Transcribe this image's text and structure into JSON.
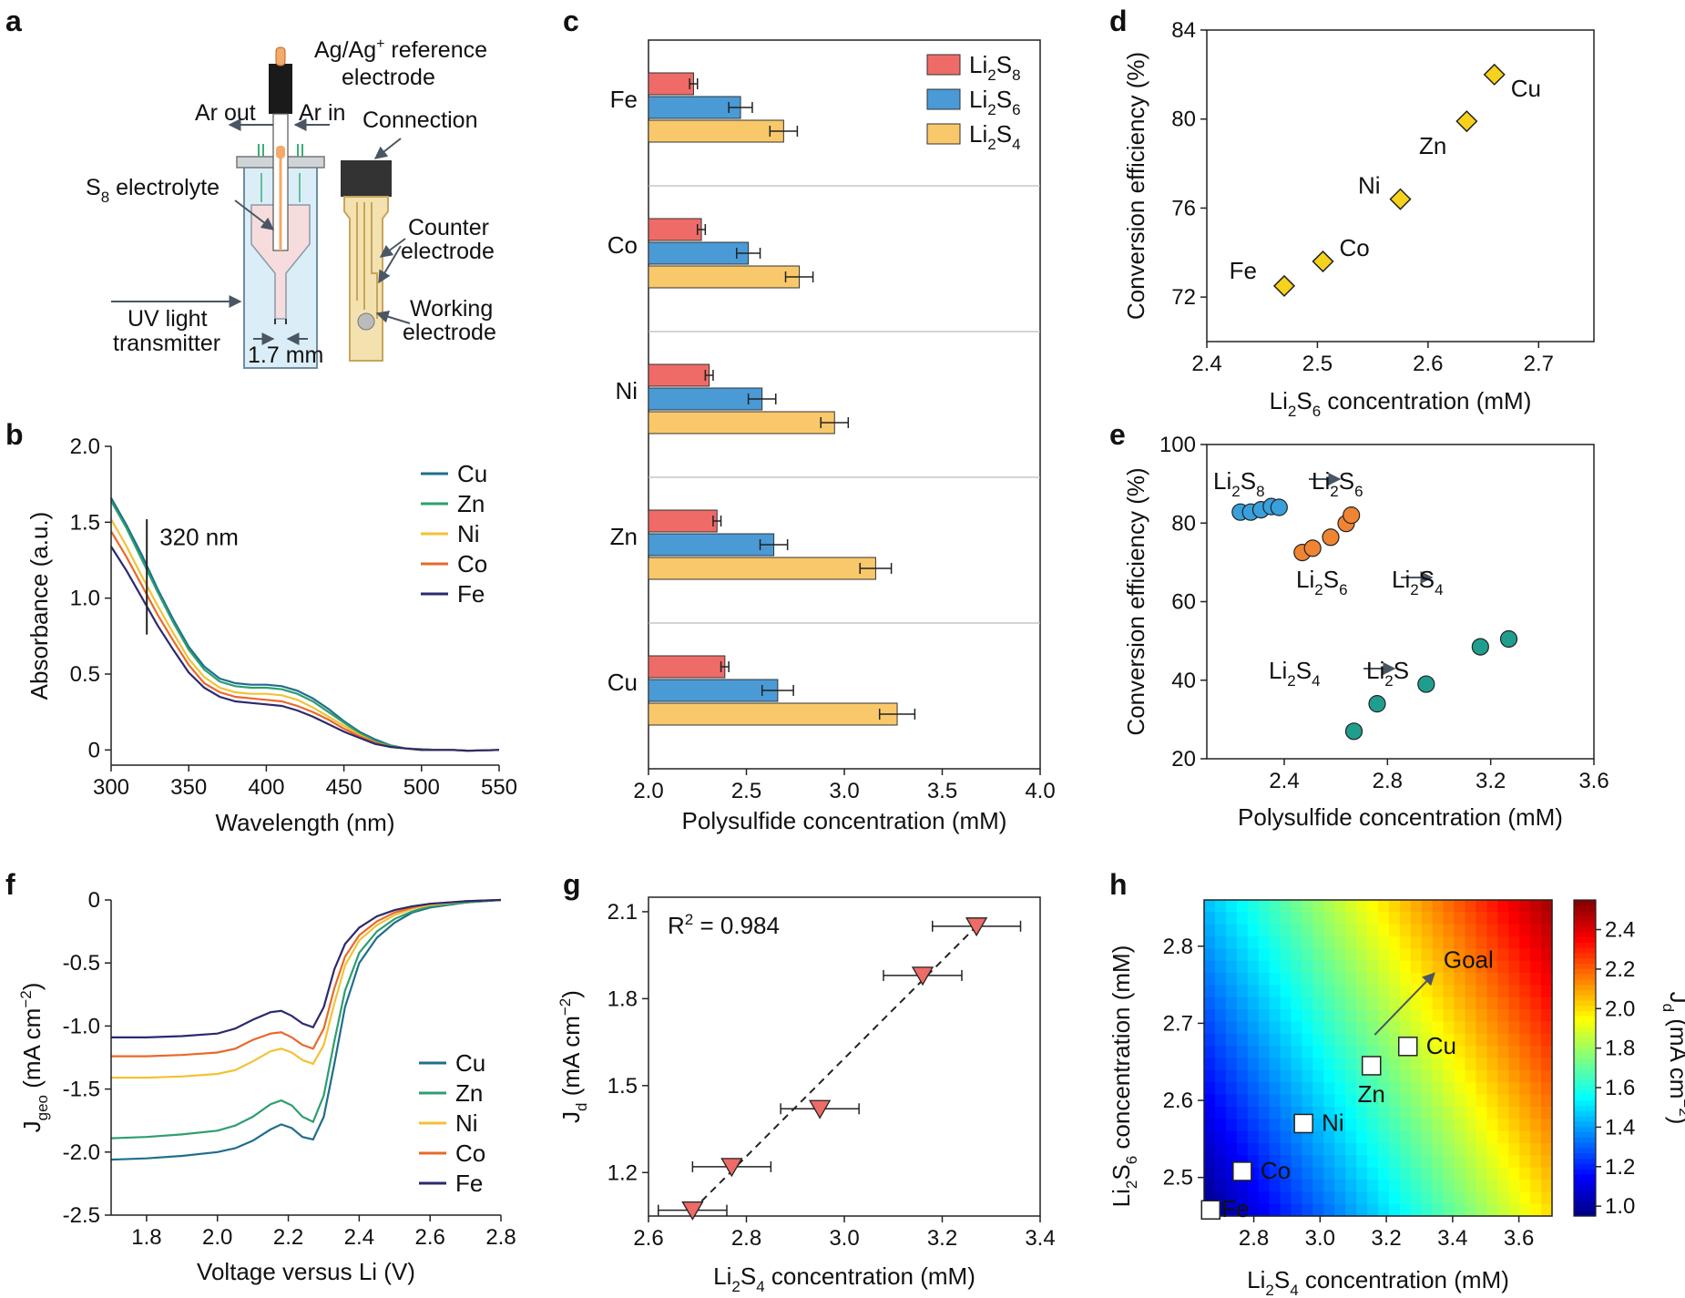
{
  "panel_letters": {
    "a": "a",
    "b": "b",
    "c": "c",
    "d": "d",
    "e": "e",
    "f": "f",
    "g": "g",
    "h": "h"
  },
  "diagram_a": {
    "labels": {
      "ref_electrode_1": "Ag/Ag",
      "ref_electrode_sup": "+",
      "ref_electrode_2": " reference",
      "ref_electrode_3": "electrode",
      "ar_out": "Ar out",
      "ar_in": "Ar in",
      "connection": "Connection",
      "electrolyte_1": "S",
      "electrolyte_sub": "8",
      "electrolyte_2": " electrolyte",
      "counter_1": "Counter",
      "counter_2": "electrode",
      "uv_1": "UV light",
      "uv_2": "transmitter",
      "width": "1.7 mm",
      "working_1": "Working",
      "working_2": "electrode"
    },
    "colors": {
      "cell": "#d7ecf7",
      "electrolyte": "#f7d9d9",
      "electrode": "#f5a96a",
      "cap": "#1a1a1a",
      "sensor": "#c9a45c"
    }
  },
  "chart_data": [
    {
      "panel": "b",
      "type": "line",
      "xlabel": "Wavelength (nm)",
      "ylabel": "Absorbance (a.u.)",
      "xlim": [
        300,
        550
      ],
      "ylim": [
        -0.1,
        2.0
      ],
      "xticks": [
        "300",
        "350",
        "400",
        "450",
        "500",
        "550"
      ],
      "yticks": [
        "0",
        "0.5",
        "1.0",
        "1.5",
        "2.0"
      ],
      "annotation": {
        "text": "320 nm",
        "x": 323
      },
      "legend_position": "top-right",
      "series": [
        {
          "name": "Cu",
          "color": "#1f6e8c",
          "x": [
            300,
            310,
            320,
            330,
            340,
            350,
            360,
            370,
            380,
            390,
            400,
            410,
            420,
            430,
            440,
            450,
            460,
            470,
            480,
            490,
            500,
            510,
            520,
            530,
            550
          ],
          "values": [
            1.66,
            1.48,
            1.28,
            1.06,
            0.86,
            0.68,
            0.55,
            0.47,
            0.44,
            0.43,
            0.43,
            0.42,
            0.39,
            0.34,
            0.27,
            0.19,
            0.12,
            0.07,
            0.03,
            0.01,
            0.005,
            0.0,
            0.0,
            -0.005,
            0.0
          ]
        },
        {
          "name": "Zn",
          "color": "#2e9e6f",
          "x": [
            300,
            310,
            320,
            330,
            340,
            350,
            360,
            370,
            380,
            390,
            400,
            410,
            420,
            430,
            440,
            450,
            460,
            470,
            480,
            490,
            500,
            510,
            520,
            530,
            550
          ],
          "values": [
            1.64,
            1.46,
            1.25,
            1.04,
            0.84,
            0.66,
            0.53,
            0.45,
            0.42,
            0.41,
            0.41,
            0.4,
            0.37,
            0.32,
            0.25,
            0.18,
            0.11,
            0.06,
            0.03,
            0.01,
            0.005,
            0.0,
            0.0,
            -0.005,
            0.0
          ]
        },
        {
          "name": "Ni",
          "color": "#f2c233",
          "x": [
            300,
            310,
            320,
            330,
            340,
            350,
            360,
            370,
            380,
            390,
            400,
            410,
            420,
            430,
            440,
            450,
            460,
            470,
            480,
            490,
            500,
            510,
            520,
            530,
            550
          ],
          "values": [
            1.52,
            1.34,
            1.14,
            0.95,
            0.77,
            0.6,
            0.48,
            0.41,
            0.38,
            0.37,
            0.37,
            0.36,
            0.33,
            0.28,
            0.22,
            0.16,
            0.1,
            0.05,
            0.02,
            0.01,
            0.0,
            0.0,
            0.0,
            -0.005,
            0.0
          ]
        },
        {
          "name": "Co",
          "color": "#e8692a",
          "x": [
            300,
            310,
            320,
            330,
            340,
            350,
            360,
            370,
            380,
            390,
            400,
            410,
            420,
            430,
            440,
            450,
            460,
            470,
            480,
            490,
            500,
            510,
            520,
            530,
            550
          ],
          "values": [
            1.44,
            1.27,
            1.08,
            0.89,
            0.72,
            0.56,
            0.44,
            0.38,
            0.35,
            0.34,
            0.33,
            0.32,
            0.29,
            0.25,
            0.2,
            0.14,
            0.09,
            0.05,
            0.02,
            0.01,
            0.0,
            0.0,
            0.0,
            -0.005,
            0.0
          ]
        },
        {
          "name": "Fe",
          "color": "#2b2a6e",
          "x": [
            300,
            310,
            320,
            330,
            340,
            350,
            360,
            370,
            380,
            390,
            400,
            410,
            420,
            430,
            440,
            450,
            460,
            470,
            480,
            490,
            500,
            510,
            520,
            530,
            550
          ],
          "values": [
            1.34,
            1.18,
            1.0,
            0.82,
            0.66,
            0.51,
            0.41,
            0.35,
            0.32,
            0.31,
            0.3,
            0.29,
            0.26,
            0.22,
            0.17,
            0.12,
            0.08,
            0.04,
            0.02,
            0.01,
            0.0,
            0.0,
            0.0,
            -0.005,
            0.0
          ]
        }
      ]
    },
    {
      "panel": "c",
      "type": "bar",
      "orientation": "horizontal",
      "xlabel": "Polysulfide concentration (mM)",
      "xlim": [
        2.0,
        4.0
      ],
      "xticks": [
        "2.0",
        "2.5",
        "3.0",
        "3.5",
        "4.0"
      ],
      "categories": [
        "Fe",
        "Co",
        "Ni",
        "Zn",
        "Cu"
      ],
      "legend_position": "top-right",
      "series": [
        {
          "name_main": "Li",
          "name_sub": "2",
          "name_main2": "S",
          "name_sub2": "8",
          "color": "#ee6b67",
          "values": [
            2.23,
            2.27,
            2.31,
            2.35,
            2.39
          ],
          "errors": [
            0.02,
            0.02,
            0.02,
            0.02,
            0.02
          ]
        },
        {
          "name_main": "Li",
          "name_sub": "2",
          "name_main2": "S",
          "name_sub2": "6",
          "color": "#4a9ad6",
          "values": [
            2.47,
            2.51,
            2.58,
            2.64,
            2.66
          ],
          "errors": [
            0.06,
            0.06,
            0.07,
            0.07,
            0.08
          ]
        },
        {
          "name_main": "Li",
          "name_sub": "2",
          "name_main2": "S",
          "name_sub2": "4",
          "color": "#f9c86a",
          "values": [
            2.69,
            2.77,
            2.95,
            3.16,
            3.27
          ],
          "errors": [
            0.07,
            0.07,
            0.07,
            0.08,
            0.09
          ]
        }
      ]
    },
    {
      "panel": "d",
      "type": "scatter",
      "xlabel_main": "Li",
      "xlabel_sub": "2",
      "xlabel_main2": "S",
      "xlabel_sub2": "6",
      "xlabel_rest": " concentration (mM)",
      "ylabel": "Conversion efficiency (%)",
      "xlim": [
        2.4,
        2.75
      ],
      "ylim": [
        70,
        84
      ],
      "xticks": [
        "2.4",
        "2.5",
        "2.6",
        "2.7"
      ],
      "yticks": [
        "72",
        "76",
        "80",
        "84"
      ],
      "color": "#f7d21c",
      "points": [
        {
          "label": "Fe",
          "x": 2.47,
          "y": 72.5
        },
        {
          "label": "Co",
          "x": 2.505,
          "y": 73.6
        },
        {
          "label": "Ni",
          "x": 2.575,
          "y": 76.4
        },
        {
          "label": "Zn",
          "x": 2.635,
          "y": 79.9
        },
        {
          "label": "Cu",
          "x": 2.66,
          "y": 82.0
        }
      ]
    },
    {
      "panel": "e",
      "type": "scatter",
      "xlabel": "Polysulfide concentration (mM)",
      "ylabel": "Conversion efficiency (%)",
      "xlim": [
        2.1,
        3.6
      ],
      "ylim": [
        20,
        100
      ],
      "xticks": [
        "2.4",
        "2.8",
        "3.2",
        "3.6"
      ],
      "yticks": [
        "20",
        "40",
        "60",
        "80",
        "100"
      ],
      "series": [
        {
          "color": "#3aa0dc",
          "x": [
            2.23,
            2.27,
            2.31,
            2.35,
            2.38
          ],
          "y": [
            82.8,
            82.8,
            83.4,
            84.2,
            84.0
          ]
        },
        {
          "color": "#ef8433",
          "x": [
            2.47,
            2.51,
            2.58,
            2.64,
            2.66
          ],
          "y": [
            72.5,
            73.6,
            76.4,
            79.9,
            82.0
          ]
        },
        {
          "color": "#1f9e8e",
          "x": [
            2.67,
            2.76,
            2.95,
            3.16,
            3.27
          ],
          "y": [
            27,
            34,
            39,
            48.5,
            50.5
          ]
        }
      ],
      "annotations": [
        {
          "a": "Li",
          "a_sub": "2",
          "a2": "S",
          "a_sub2": "8",
          "b": "Li",
          "b_sub": "2",
          "b2": "S",
          "b_sub2": "6"
        },
        {
          "a": "Li",
          "a_sub": "2",
          "a2": "S",
          "a_sub2": "6",
          "b": "Li",
          "b_sub": "2",
          "b2": "S",
          "b_sub2": "4"
        },
        {
          "a": "Li",
          "a_sub": "2",
          "a2": "S",
          "a_sub2": "4",
          "b": "Li",
          "b_sub": "2",
          "b2": "S",
          "b_sub2": ""
        }
      ]
    },
    {
      "panel": "f",
      "type": "line",
      "xlabel": "Voltage versus Li (V)",
      "ylabel_main": "J",
      "ylabel_sub": "geo",
      "ylabel_rest": " (mA cm",
      "ylabel_sup": "−2",
      "ylabel_end": ")",
      "xlim": [
        1.7,
        2.8
      ],
      "ylim": [
        -2.5,
        0
      ],
      "xticks": [
        "1.8",
        "2.0",
        "2.2",
        "2.4",
        "2.6",
        "2.8"
      ],
      "yticks": [
        "0",
        "-0.5",
        "-1.0",
        "-1.5",
        "-2.0",
        "-2.5"
      ],
      "legend_position": "bottom-right",
      "series": [
        {
          "name": "Cu",
          "color": "#1f6e8c",
          "x": [
            1.7,
            1.8,
            1.9,
            2.0,
            2.05,
            2.1,
            2.15,
            2.18,
            2.21,
            2.24,
            2.27,
            2.3,
            2.33,
            2.36,
            2.4,
            2.45,
            2.5,
            2.55,
            2.6,
            2.7,
            2.8
          ],
          "values": [
            -2.06,
            -2.05,
            -2.03,
            -2.0,
            -1.97,
            -1.91,
            -1.82,
            -1.78,
            -1.81,
            -1.88,
            -1.9,
            -1.72,
            -1.3,
            -0.85,
            -0.5,
            -0.3,
            -0.18,
            -0.1,
            -0.06,
            -0.02,
            0
          ]
        },
        {
          "name": "Zn",
          "color": "#2e9e6f",
          "x": [
            1.7,
            1.8,
            1.9,
            2.0,
            2.05,
            2.1,
            2.15,
            2.18,
            2.21,
            2.24,
            2.27,
            2.3,
            2.33,
            2.36,
            2.4,
            2.45,
            2.5,
            2.55,
            2.6,
            2.7,
            2.8
          ],
          "values": [
            -1.89,
            -1.88,
            -1.86,
            -1.83,
            -1.79,
            -1.72,
            -1.62,
            -1.59,
            -1.63,
            -1.72,
            -1.76,
            -1.55,
            -1.12,
            -0.72,
            -0.42,
            -0.25,
            -0.15,
            -0.09,
            -0.05,
            -0.02,
            0
          ]
        },
        {
          "name": "Ni",
          "color": "#f2c233",
          "x": [
            1.7,
            1.8,
            1.9,
            2.0,
            2.05,
            2.1,
            2.15,
            2.18,
            2.21,
            2.24,
            2.27,
            2.3,
            2.33,
            2.36,
            2.4,
            2.45,
            2.5,
            2.55,
            2.6,
            2.7,
            2.8
          ],
          "values": [
            -1.41,
            -1.41,
            -1.4,
            -1.38,
            -1.35,
            -1.28,
            -1.2,
            -1.18,
            -1.21,
            -1.27,
            -1.3,
            -1.15,
            -0.82,
            -0.52,
            -0.32,
            -0.2,
            -0.12,
            -0.07,
            -0.04,
            -0.01,
            0
          ]
        },
        {
          "name": "Co",
          "color": "#e8692a",
          "x": [
            1.7,
            1.8,
            1.9,
            2.0,
            2.05,
            2.1,
            2.15,
            2.18,
            2.21,
            2.24,
            2.27,
            2.3,
            2.33,
            2.36,
            2.4,
            2.45,
            2.5,
            2.55,
            2.6,
            2.7,
            2.8
          ],
          "values": [
            -1.24,
            -1.24,
            -1.23,
            -1.21,
            -1.18,
            -1.11,
            -1.06,
            -1.05,
            -1.09,
            -1.15,
            -1.18,
            -1.02,
            -0.7,
            -0.45,
            -0.28,
            -0.17,
            -0.1,
            -0.06,
            -0.03,
            -0.01,
            0
          ]
        },
        {
          "name": "Fe",
          "color": "#2b2a6e",
          "x": [
            1.7,
            1.8,
            1.9,
            2.0,
            2.05,
            2.1,
            2.15,
            2.18,
            2.21,
            2.24,
            2.27,
            2.3,
            2.33,
            2.36,
            2.4,
            2.45,
            2.5,
            2.55,
            2.6,
            2.7,
            2.8
          ],
          "values": [
            -1.09,
            -1.09,
            -1.08,
            -1.06,
            -1.02,
            -0.95,
            -0.89,
            -0.88,
            -0.92,
            -0.98,
            -1.01,
            -0.85,
            -0.55,
            -0.35,
            -0.22,
            -0.13,
            -0.08,
            -0.05,
            -0.03,
            -0.01,
            0
          ]
        }
      ]
    },
    {
      "panel": "g",
      "type": "scatter",
      "xlabel_main": "Li",
      "xlabel_sub": "2",
      "xlabel_main2": "S",
      "xlabel_sub2": "4",
      "xlabel_rest": " concentration (mM)",
      "ylabel_main": "J",
      "ylabel_sub": "d",
      "ylabel_rest": " (mA cm",
      "ylabel_sup": "−2",
      "ylabel_end": ")",
      "xlim": [
        2.6,
        3.4
      ],
      "ylim": [
        1.05,
        2.15
      ],
      "xticks": [
        "2.6",
        "2.8",
        "3.0",
        "3.2",
        "3.4"
      ],
      "yticks": [
        "1.2",
        "1.5",
        "1.8",
        "2.1"
      ],
      "r2_main": "R",
      "r2_sup": "2",
      "r2_rest": " = 0.984",
      "color": "#ee6b67",
      "points": [
        {
          "x": 2.69,
          "y": 1.07,
          "xerr": 0.07
        },
        {
          "x": 2.77,
          "y": 1.22,
          "xerr": 0.08
        },
        {
          "x": 2.95,
          "y": 1.42,
          "xerr": 0.08
        },
        {
          "x": 3.16,
          "y": 1.88,
          "xerr": 0.08
        },
        {
          "x": 3.27,
          "y": 2.05,
          "xerr": 0.09
        }
      ],
      "fit_line": [
        [
          2.69,
          1.07
        ],
        [
          3.27,
          2.05
        ]
      ]
    },
    {
      "panel": "h",
      "type": "heatmap",
      "xlabel_main": "Li",
      "xlabel_sub": "2",
      "xlabel_main2": "S",
      "xlabel_sub2": "4",
      "xlabel_rest": " concentration (mM)",
      "ylabel_main": "Li",
      "ylabel_sub": "2",
      "ylabel_main2": "S",
      "ylabel_sub2": "6",
      "ylabel_rest": " concentration (mM)",
      "xlim": [
        2.65,
        3.7
      ],
      "ylim": [
        2.45,
        2.86
      ],
      "xticks": [
        "2.8",
        "3.0",
        "3.2",
        "3.4",
        "3.6"
      ],
      "yticks": [
        "2.5",
        "2.6",
        "2.7",
        "2.8"
      ],
      "colorbar": {
        "label_main": "J",
        "label_sub": "d",
        "label_rest": " (mA cm",
        "label_sup": "−2",
        "label_end": ")",
        "min": 0.95,
        "max": 2.55,
        "ticks": [
          "1.0",
          "1.2",
          "1.4",
          "1.6",
          "1.8",
          "2.0",
          "2.2",
          "2.4"
        ]
      },
      "points": [
        {
          "label": "Fe",
          "x": 2.67,
          "y": 2.458
        },
        {
          "label": "Co",
          "x": 2.765,
          "y": 2.508
        },
        {
          "label": "Ni",
          "x": 2.95,
          "y": 2.57
        },
        {
          "label": "Zn",
          "x": 3.155,
          "y": 2.645
        },
        {
          "label": "Cu",
          "x": 3.265,
          "y": 2.67
        }
      ],
      "goal": {
        "text": "Goal",
        "from": [
          3.165,
          2.685
        ],
        "to": [
          3.345,
          2.765
        ]
      }
    }
  ]
}
